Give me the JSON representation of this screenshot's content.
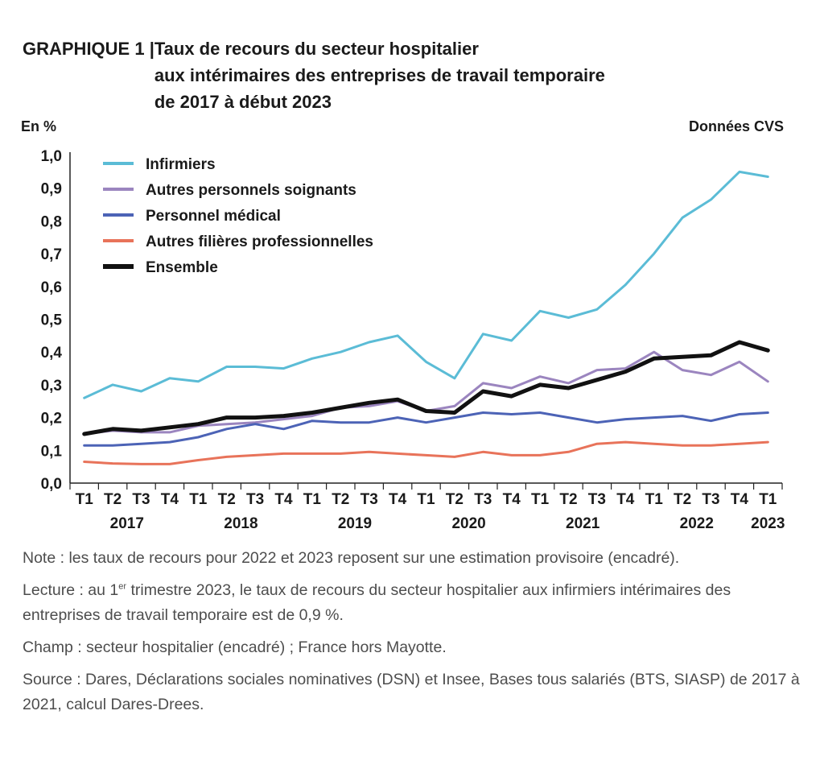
{
  "header": {
    "prefix": "GRAPHIQUE 1 | ",
    "title_lines": [
      "Taux de recours du secteur hospitalier",
      "aux intérimaires des entreprises de travail temporaire",
      "de 2017 à début 2023"
    ],
    "unit_left": "En %",
    "unit_right": "Données CVS"
  },
  "chart_data": {
    "type": "line",
    "title": "Taux de recours du secteur hospitalier aux intérimaires des entreprises de travail temporaire de 2017 à début 2023",
    "ylabel": "En %",
    "ylim": [
      0,
      1.0
    ],
    "yticks": [
      "0,0",
      "0,1",
      "0,2",
      "0,3",
      "0,4",
      "0,5",
      "0,6",
      "0,7",
      "0,8",
      "0,9",
      "1,0"
    ],
    "x": [
      "T1",
      "T2",
      "T3",
      "T4",
      "T1",
      "T2",
      "T3",
      "T4",
      "T1",
      "T2",
      "T3",
      "T4",
      "T1",
      "T2",
      "T3",
      "T4",
      "T1",
      "T2",
      "T3",
      "T4",
      "T1",
      "T2",
      "T3",
      "T4",
      "T1"
    ],
    "years": [
      {
        "label": "2017",
        "start": 0,
        "end": 3
      },
      {
        "label": "2018",
        "start": 4,
        "end": 7
      },
      {
        "label": "2019",
        "start": 8,
        "end": 11
      },
      {
        "label": "2020",
        "start": 12,
        "end": 15
      },
      {
        "label": "2021",
        "start": 16,
        "end": 19
      },
      {
        "label": "2022",
        "start": 20,
        "end": 23
      },
      {
        "label": "2023",
        "start": 24,
        "end": 24
      }
    ],
    "grid": false,
    "legend_position": "top-left",
    "series": [
      {
        "name": "Infirmiers",
        "color": "#5bbcd6",
        "width": 3,
        "values": [
          0.26,
          0.3,
          0.28,
          0.32,
          0.31,
          0.355,
          0.355,
          0.35,
          0.38,
          0.4,
          0.43,
          0.45,
          0.37,
          0.32,
          0.455,
          0.435,
          0.525,
          0.505,
          0.53,
          0.605,
          0.7,
          0.81,
          0.865,
          0.95,
          0.935
        ]
      },
      {
        "name": "Autres personnels soignants",
        "color": "#9b85bf",
        "width": 3,
        "values": [
          0.15,
          0.16,
          0.155,
          0.155,
          0.175,
          0.18,
          0.185,
          0.195,
          0.205,
          0.23,
          0.235,
          0.25,
          0.22,
          0.235,
          0.305,
          0.29,
          0.325,
          0.305,
          0.345,
          0.35,
          0.4,
          0.345,
          0.33,
          0.37,
          0.31
        ]
      },
      {
        "name": "Personnel médical",
        "color": "#4c63b6",
        "width": 3,
        "values": [
          0.115,
          0.115,
          0.12,
          0.125,
          0.14,
          0.165,
          0.18,
          0.165,
          0.19,
          0.185,
          0.185,
          0.2,
          0.185,
          0.2,
          0.215,
          0.21,
          0.215,
          0.2,
          0.185,
          0.195,
          0.2,
          0.205,
          0.19,
          0.21,
          0.215
        ]
      },
      {
        "name": "Autres filières professionnelles",
        "color": "#e8735a",
        "width": 3,
        "values": [
          0.065,
          0.06,
          0.058,
          0.058,
          0.07,
          0.08,
          0.085,
          0.09,
          0.09,
          0.09,
          0.095,
          0.09,
          0.085,
          0.08,
          0.095,
          0.085,
          0.085,
          0.095,
          0.12,
          0.125,
          0.12,
          0.115,
          0.115,
          0.12,
          0.125
        ]
      },
      {
        "name": "Ensemble",
        "color": "#111111",
        "width": 5,
        "values": [
          0.15,
          0.165,
          0.16,
          0.17,
          0.18,
          0.2,
          0.2,
          0.205,
          0.215,
          0.23,
          0.245,
          0.255,
          0.22,
          0.215,
          0.28,
          0.265,
          0.3,
          0.29,
          0.315,
          0.34,
          0.38,
          0.385,
          0.39,
          0.43,
          0.405
        ]
      }
    ]
  },
  "notes": {
    "note_label": "Note",
    "note_text": " : les taux de recours pour 2022 et 2023 reposent sur une estimation provisoire (encadré).",
    "lecture_label": "Lecture",
    "lecture_before": " : au 1",
    "lecture_sup": "er",
    "lecture_after": " trimestre 2023, le taux de recours du secteur hospitalier aux infirmiers intérimaires des entreprises de travail temporaire est de 0,9 %.",
    "champ_label": "Champ",
    "champ_text": " : secteur hospitalier (encadré) ; France hors Mayotte.",
    "source_label": "Source",
    "source_text": " : Dares, Déclarations sociales nominatives (DSN) et Insee, Bases tous salariés (BTS, SIASP) de 2017 à 2021, calcul Dares-Drees."
  }
}
